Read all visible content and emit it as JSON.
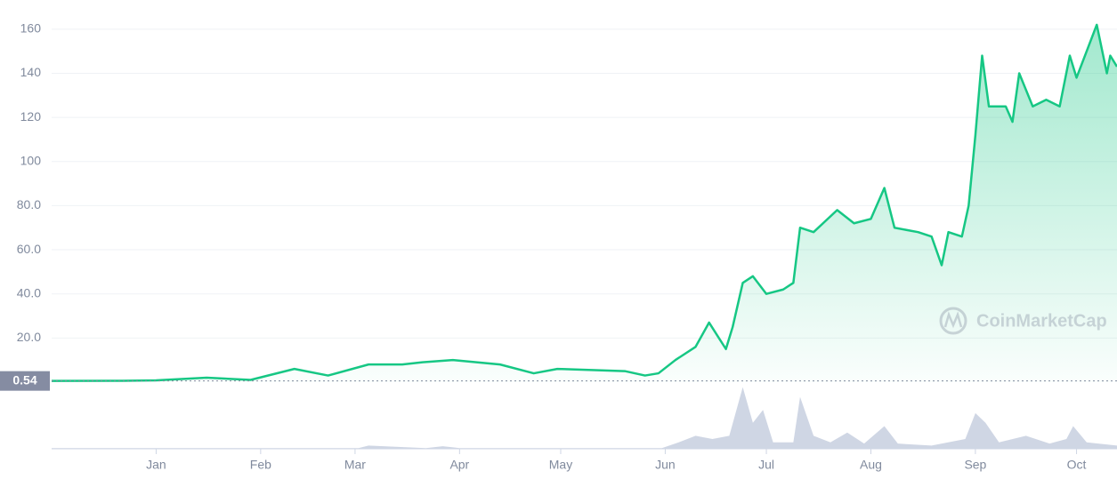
{
  "chart_data": {
    "type": "line",
    "color": "#16c784",
    "x": [
      -31,
      -10,
      0,
      15,
      28,
      41,
      51,
      63,
      73,
      79,
      88,
      102,
      112,
      119,
      139,
      145,
      149,
      154,
      160,
      164,
      169,
      171,
      174,
      177,
      181,
      186,
      189,
      191,
      195,
      202,
      207,
      212,
      216,
      219,
      226,
      230,
      233,
      235,
      239,
      241,
      243,
      245,
      247,
      252,
      254,
      256,
      260,
      264,
      268,
      271,
      273,
      276,
      279,
      282,
      283,
      285
    ],
    "values": [
      0.54,
      0.6,
      0.8,
      2,
      1,
      6,
      3,
      8,
      8,
      9,
      10,
      8,
      4,
      6,
      5,
      3,
      4,
      10,
      16,
      27,
      15,
      25,
      45,
      48,
      40,
      42,
      45,
      70,
      68,
      78,
      72,
      74,
      88,
      70,
      68,
      66,
      53,
      68,
      66,
      80,
      112,
      148,
      125,
      125,
      118,
      140,
      125,
      128,
      125,
      148,
      138,
      150,
      162,
      140,
      148,
      143
    ],
    "xlim": [
      -31,
      285
    ],
    "xticks": [
      {
        "value": 0,
        "label": "Jan"
      },
      {
        "value": 31,
        "label": "Feb"
      },
      {
        "value": 59,
        "label": "Mar"
      },
      {
        "value": 90,
        "label": "Apr"
      },
      {
        "value": 120,
        "label": "May"
      },
      {
        "value": 151,
        "label": "Jun"
      },
      {
        "value": 181,
        "label": "Jul"
      },
      {
        "value": 212,
        "label": "Aug"
      },
      {
        "value": 243,
        "label": "Sep"
      },
      {
        "value": 273,
        "label": "Oct"
      }
    ],
    "ylim": [
      0,
      170
    ],
    "yticks": [
      {
        "value": 20,
        "label": "20.0"
      },
      {
        "value": 40,
        "label": "40.0"
      },
      {
        "value": 60,
        "label": "60.0"
      },
      {
        "value": 80,
        "label": "80.0"
      },
      100,
      120,
      140,
      160
    ],
    "grid": true,
    "reference_value": 0.54,
    "watermark": "CoinMarketCap",
    "volume": {
      "color": "#cfd6e4",
      "x": [
        -31,
        60,
        63,
        80,
        85,
        90,
        150,
        155,
        160,
        165,
        170,
        174,
        177,
        180,
        183,
        189,
        191,
        195,
        200,
        205,
        210,
        216,
        220,
        230,
        240,
        243,
        246,
        250,
        258,
        265,
        270,
        272,
        276,
        285
      ],
      "values": [
        1,
        1,
        5,
        1,
        4,
        1,
        1,
        10,
        20,
        15,
        20,
        95,
        40,
        60,
        10,
        10,
        80,
        20,
        10,
        25,
        8,
        35,
        8,
        5,
        15,
        55,
        40,
        10,
        20,
        8,
        15,
        35,
        10,
        5
      ],
      "vlim": [
        0,
        100
      ]
    }
  }
}
